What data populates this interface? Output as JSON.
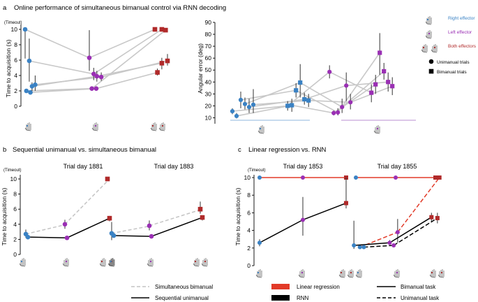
{
  "colors": {
    "right": "#3a82c4",
    "left": "#9a2fb4",
    "both": "#b02a2a",
    "lin_reg": "#e23a28",
    "rnn": "#000000",
    "gray_line": "#c8c8c8",
    "dashed_gray": "#c4c4c4",
    "band_blue": "#8fb7dc",
    "band_purple": "#b98fd0"
  },
  "panels": {
    "a": {
      "letter": "a",
      "title": "Online performance of simultaneous bimanual control via RNN decoding"
    },
    "b": {
      "letter": "b",
      "title": "Sequential unimanual vs. simultaneous bimanual"
    },
    "c": {
      "letter": "c",
      "title": "Linear regression vs. RNN"
    }
  },
  "legend_a": {
    "right_effector": "Right effector",
    "left_effector": "Left effector",
    "both_effectors": "Both effectors",
    "unimanual_trials": "Unimanual trials",
    "bimanual_trials": "Bimanual trials"
  },
  "legend_b": {
    "simultaneous": "Simultaneous bimanual",
    "sequential": "Sequential unimanual"
  },
  "legend_c": {
    "linear_regression": "Linear regression",
    "rnn": "RNN",
    "bimanual_task": "Bimanual task",
    "unimanual_task": "Unimanual task"
  },
  "chart_data": [
    {
      "id": "a1",
      "type": "scatter",
      "title": "",
      "xlabel": "",
      "ylabel": "Time to acquisition (s)",
      "ylim": [
        0,
        10
      ],
      "yticks": [
        "0",
        "2",
        "4",
        "6",
        "8",
        "10"
      ],
      "timeout_label": "(Timeout)",
      "x_groups": [
        "Right",
        "Left",
        "Both"
      ],
      "points": [
        {
          "g": 0,
          "j": 0.0,
          "y": 10.0,
          "lo": 6.2,
          "hi": 10.0,
          "m": "c",
          "c": "right"
        },
        {
          "g": 0,
          "j": 0.33,
          "y": 5.9,
          "lo": 3.2,
          "hi": 8.8,
          "m": "c",
          "c": "right"
        },
        {
          "g": 0,
          "j": 0.1,
          "y": 2.0,
          "lo": 2.0,
          "hi": 2.0,
          "m": "c",
          "c": "right"
        },
        {
          "g": 0,
          "j": 0.42,
          "y": 1.8,
          "lo": 1.8,
          "hi": 1.8,
          "m": "c",
          "c": "right"
        },
        {
          "g": 0,
          "j": 0.55,
          "y": 2.6,
          "lo": 2.0,
          "hi": 3.1,
          "m": "c",
          "c": "right"
        },
        {
          "g": 0,
          "j": 0.8,
          "y": 2.8,
          "lo": 2.0,
          "hi": 4.0,
          "m": "c",
          "c": "right"
        },
        {
          "g": 1,
          "j": 0.0,
          "y": 6.3,
          "lo": 4.6,
          "hi": 9.9,
          "m": "c",
          "c": "left"
        },
        {
          "g": 1,
          "j": 0.35,
          "y": 4.2,
          "lo": 3.4,
          "hi": 5.0,
          "m": "c",
          "c": "left"
        },
        {
          "g": 1,
          "j": 0.6,
          "y": 3.9,
          "lo": 3.2,
          "hi": 4.6,
          "m": "c",
          "c": "left"
        },
        {
          "g": 1,
          "j": 0.95,
          "y": 3.8,
          "lo": 3.3,
          "hi": 4.4,
          "m": "c",
          "c": "left"
        },
        {
          "g": 1,
          "j": 0.2,
          "y": 2.3,
          "lo": 2.3,
          "hi": 2.3,
          "m": "c",
          "c": "left"
        },
        {
          "g": 1,
          "j": 0.55,
          "y": 2.3,
          "lo": 2.3,
          "hi": 2.3,
          "m": "c",
          "c": "left"
        },
        {
          "g": 2,
          "j": 0.0,
          "y": 10.0,
          "lo": 10.0,
          "hi": 10.0,
          "m": "s",
          "c": "both"
        },
        {
          "g": 2,
          "j": 0.55,
          "y": 10.0,
          "lo": 10.0,
          "hi": 10.0,
          "m": "s",
          "c": "both"
        },
        {
          "g": 2,
          "j": 0.85,
          "y": 9.9,
          "lo": 9.9,
          "hi": 9.9,
          "m": "s",
          "c": "both"
        },
        {
          "g": 2,
          "j": 0.2,
          "y": 4.4,
          "lo": 4.0,
          "hi": 4.9,
          "m": "s",
          "c": "both"
        },
        {
          "g": 2,
          "j": 0.55,
          "y": 5.6,
          "lo": 4.8,
          "hi": 6.3,
          "m": "s",
          "c": "both"
        },
        {
          "g": 2,
          "j": 1.0,
          "y": 5.9,
          "lo": 5.3,
          "hi": 6.8,
          "m": "s",
          "c": "both"
        }
      ],
      "links": [
        [
          0,
          6
        ],
        [
          6,
          12
        ],
        [
          1,
          7
        ],
        [
          7,
          13
        ],
        [
          2,
          10
        ],
        [
          10,
          14
        ],
        [
          3,
          11
        ],
        [
          11,
          15
        ],
        [
          4,
          8
        ],
        [
          8,
          16
        ],
        [
          5,
          9
        ],
        [
          9,
          17
        ]
      ]
    },
    {
      "id": "a2",
      "type": "scatter",
      "title": "",
      "xlabel": "",
      "ylabel": "Angular error (deg)",
      "ylim": [
        5,
        90
      ],
      "yticks": [
        "10",
        "20",
        "30",
        "40",
        "50",
        "60",
        "70",
        "80",
        "90"
      ],
      "groups": [
        "Right",
        "Left"
      ],
      "points": [
        {
          "x": 0.0,
          "y": 15.5,
          "lo": 13.0,
          "hi": 18.0,
          "m": "c",
          "c": "right"
        },
        {
          "x": 0.25,
          "y": 11.5,
          "lo": 9.5,
          "hi": 14.0,
          "m": "c",
          "c": "right"
        },
        {
          "x": 0.5,
          "y": 25.0,
          "lo": 18.0,
          "hi": 32.0,
          "m": "c",
          "c": "right"
        },
        {
          "x": 0.75,
          "y": 21.5,
          "lo": 17.0,
          "hi": 27.0,
          "m": "c",
          "c": "right"
        },
        {
          "x": 1.0,
          "y": 19.0,
          "lo": 14.0,
          "hi": 26.0,
          "m": "c",
          "c": "right"
        },
        {
          "x": 1.25,
          "y": 21.0,
          "lo": 14.0,
          "hi": 34.0,
          "m": "c",
          "c": "right"
        },
        {
          "x": 3.3,
          "y": 20.0,
          "lo": 16.0,
          "hi": 24.0,
          "m": "s",
          "c": "right"
        },
        {
          "x": 3.55,
          "y": 20.5,
          "lo": 15.0,
          "hi": 26.0,
          "m": "s",
          "c": "right"
        },
        {
          "x": 3.8,
          "y": 33.0,
          "lo": 27.0,
          "hi": 39.0,
          "m": "s",
          "c": "right"
        },
        {
          "x": 4.05,
          "y": 39.5,
          "lo": 27.0,
          "hi": 55.0,
          "m": "s",
          "c": "right"
        },
        {
          "x": 4.3,
          "y": 25.5,
          "lo": 21.0,
          "hi": 31.0,
          "m": "s",
          "c": "right"
        },
        {
          "x": 4.55,
          "y": 24.5,
          "lo": 19.0,
          "hi": 30.0,
          "m": "s",
          "c": "right"
        },
        {
          "x": 5.8,
          "y": 48.5,
          "lo": 43.0,
          "hi": 54.0,
          "m": "c",
          "c": "left"
        },
        {
          "x": 6.05,
          "y": 14.0,
          "lo": 12.0,
          "hi": 16.0,
          "m": "c",
          "c": "left"
        },
        {
          "x": 6.3,
          "y": 14.5,
          "lo": 12.0,
          "hi": 18.0,
          "m": "c",
          "c": "left"
        },
        {
          "x": 6.55,
          "y": 19.0,
          "lo": 14.0,
          "hi": 26.0,
          "m": "c",
          "c": "left"
        },
        {
          "x": 6.8,
          "y": 37.0,
          "lo": 24.0,
          "hi": 48.0,
          "m": "c",
          "c": "left"
        },
        {
          "x": 7.05,
          "y": 23.0,
          "lo": 17.0,
          "hi": 30.0,
          "m": "c",
          "c": "left"
        },
        {
          "x": 8.3,
          "y": 31.0,
          "lo": 23.0,
          "hi": 38.0,
          "m": "s",
          "c": "left"
        },
        {
          "x": 8.55,
          "y": 38.0,
          "lo": 30.0,
          "hi": 46.0,
          "m": "s",
          "c": "left"
        },
        {
          "x": 8.8,
          "y": 64.5,
          "lo": 46.0,
          "hi": 81.0,
          "m": "s",
          "c": "left"
        },
        {
          "x": 9.05,
          "y": 49.0,
          "lo": 42.0,
          "hi": 56.0,
          "m": "s",
          "c": "left"
        },
        {
          "x": 9.3,
          "y": 40.0,
          "lo": 32.0,
          "hi": 48.0,
          "m": "s",
          "c": "left"
        },
        {
          "x": 9.55,
          "y": 36.5,
          "lo": 29.0,
          "hi": 44.0,
          "m": "s",
          "c": "left"
        }
      ],
      "links": [
        [
          0,
          6
        ],
        [
          1,
          7
        ],
        [
          2,
          8
        ],
        [
          3,
          9
        ],
        [
          4,
          10
        ],
        [
          5,
          11
        ],
        [
          12,
          18
        ],
        [
          13,
          19
        ],
        [
          14,
          20
        ],
        [
          15,
          21
        ],
        [
          16,
          22
        ],
        [
          17,
          23
        ],
        [
          6,
          12
        ],
        [
          7,
          13
        ],
        [
          8,
          14
        ],
        [
          9,
          15
        ],
        [
          10,
          16
        ],
        [
          11,
          17
        ]
      ]
    },
    {
      "id": "b",
      "type": "line",
      "ylabel": "Time to acquisition (s)",
      "timeout_label": "(Timeout)",
      "ylim": [
        0,
        10
      ],
      "yticks": [
        "0",
        "2",
        "4",
        "6",
        "8",
        "10"
      ],
      "subplots": [
        {
          "title": "Trial day 1881",
          "simultaneous": [
            {
              "x": 0,
              "y": 2.7,
              "lo": 2.2,
              "hi": 3.3,
              "c": "right"
            },
            {
              "x": 1,
              "y": 4.0,
              "lo": 3.4,
              "hi": 4.6,
              "c": "left"
            },
            {
              "x": 2,
              "y": 10.0,
              "lo": 10.0,
              "hi": 10.0,
              "c": "both"
            }
          ],
          "sequential": [
            {
              "x": 0,
              "y": 2.3,
              "lo": 2.0,
              "hi": 2.6,
              "c": "right"
            },
            {
              "x": 1,
              "y": 2.2,
              "lo": 2.0,
              "hi": 2.4,
              "c": "left"
            },
            {
              "x": 2,
              "y": 4.8,
              "lo": 4.4,
              "hi": 5.1,
              "c": "both"
            }
          ]
        },
        {
          "title": "Trial day 1883",
          "simultaneous": [
            {
              "x": 0,
              "y": 2.8,
              "lo": 1.9,
              "hi": 4.3,
              "c": "right"
            },
            {
              "x": 1,
              "y": 3.8,
              "lo": 3.2,
              "hi": 4.5,
              "c": "left"
            },
            {
              "x": 2,
              "y": 6.0,
              "lo": 5.4,
              "hi": 7.0,
              "c": "both"
            }
          ],
          "sequential": [
            {
              "x": 0,
              "y": 2.5,
              "lo": 2.2,
              "hi": 2.8,
              "c": "right"
            },
            {
              "x": 1,
              "y": 2.4,
              "lo": 2.2,
              "hi": 2.6,
              "c": "left"
            },
            {
              "x": 2,
              "y": 4.9,
              "lo": 4.5,
              "hi": 5.2,
              "c": "both"
            }
          ]
        }
      ]
    },
    {
      "id": "c",
      "type": "line",
      "ylabel": "Time to acquisition (s)",
      "timeout_label": "(Timeout)",
      "ylim": [
        0,
        10
      ],
      "yticks": [
        "0",
        "2",
        "4",
        "6",
        "8",
        "10"
      ],
      "subplots": [
        {
          "title": "Trial day 1853",
          "series": [
            {
              "name": "Linear regression - Bimanual task",
              "color": "lin_reg",
              "dash": false,
              "points": [
                {
                  "x": 0,
                  "y": 10.0,
                  "lo": 10.0,
                  "hi": 10.0,
                  "c": "right"
                },
                {
                  "x": 1,
                  "y": 10.0,
                  "lo": 10.0,
                  "hi": 10.0,
                  "c": "left"
                },
                {
                  "x": 2,
                  "y": 10.0,
                  "lo": 10.0,
                  "hi": 10.0,
                  "c": "both"
                }
              ]
            },
            {
              "name": "RNN - Bimanual task",
              "color": "rnn",
              "dash": false,
              "points": [
                {
                  "x": 0,
                  "y": 2.6,
                  "lo": 2.2,
                  "hi": 3.0,
                  "c": "right"
                },
                {
                  "x": 1,
                  "y": 5.2,
                  "lo": 3.4,
                  "hi": 7.8,
                  "c": "left"
                },
                {
                  "x": 2,
                  "y": 7.1,
                  "lo": 6.5,
                  "hi": 10.0,
                  "c": "both"
                }
              ]
            }
          ]
        },
        {
          "title": "Trial day 1855",
          "series": [
            {
              "name": "Linear regression - Bimanual task",
              "color": "lin_reg",
              "dash": false,
              "points": [
                {
                  "x": 0,
                  "y": 10.0,
                  "lo": 10.0,
                  "hi": 10.0,
                  "c": "right"
                },
                {
                  "x": 1,
                  "y": 10.0,
                  "lo": 10.0,
                  "hi": 10.0,
                  "c": "left"
                },
                {
                  "x": 2,
                  "y": 10.0,
                  "lo": 10.0,
                  "hi": 10.0,
                  "c": "both"
                }
              ]
            },
            {
              "name": "Linear regression - Unimanual task",
              "color": "lin_reg",
              "dash": true,
              "points": [
                {
                  "x": 0.1,
                  "y": 2.1,
                  "lo": 1.9,
                  "hi": 2.3,
                  "c": "right"
                },
                {
                  "x": 1.05,
                  "y": 3.8,
                  "lo": 2.6,
                  "hi": 5.3,
                  "c": "left"
                },
                {
                  "x": 2.1,
                  "y": 10.0,
                  "lo": 10.0,
                  "hi": 10.0,
                  "c": "both"
                }
              ]
            },
            {
              "name": "RNN - Bimanual task",
              "color": "rnn",
              "dash": false,
              "points": [
                {
                  "x": -0.05,
                  "y": 2.3,
                  "lo": 1.9,
                  "hi": 5.1,
                  "c": "right"
                },
                {
                  "x": 0.85,
                  "y": 2.6,
                  "lo": 2.4,
                  "hi": 2.9,
                  "c": "left"
                },
                {
                  "x": 1.9,
                  "y": 5.5,
                  "lo": 4.9,
                  "hi": 6.0,
                  "c": "both"
                }
              ]
            },
            {
              "name": "RNN - Unimanual task",
              "color": "rnn",
              "dash": true,
              "points": [
                {
                  "x": 0.2,
                  "y": 2.1,
                  "lo": 1.9,
                  "hi": 2.3,
                  "c": "right"
                },
                {
                  "x": 0.95,
                  "y": 2.3,
                  "lo": 2.1,
                  "hi": 2.5,
                  "c": "left"
                },
                {
                  "x": 2.05,
                  "y": 5.4,
                  "lo": 4.8,
                  "hi": 6.0,
                  "c": "both"
                }
              ]
            }
          ]
        }
      ]
    }
  ]
}
